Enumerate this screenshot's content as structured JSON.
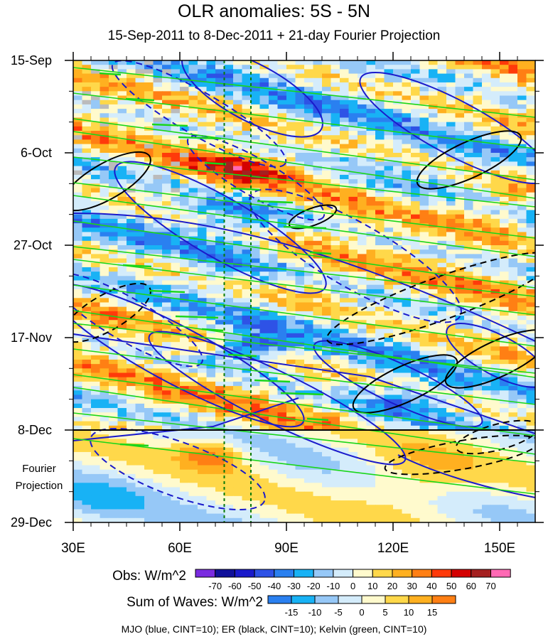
{
  "header": {
    "title": "OLR anomalies: 5S - 5N",
    "subtitle": "15-Sep-2011 to 8-Dec-2011 + 21-day Fourier Projection"
  },
  "chart_data": {
    "type": "heatmap",
    "title": "OLR anomalies: 5S - 5N",
    "subtitle": "15-Sep-2011 to 8-Dec-2011 + 21-day Fourier Projection",
    "xlabel": "",
    "ylabel": "",
    "x_ticks": [
      "30E",
      "60E",
      "90E",
      "120E",
      "150E"
    ],
    "x_tick_values": [
      30,
      60,
      90,
      120,
      150
    ],
    "xlim": [
      30,
      160
    ],
    "y_ticks": [
      "15-Sep",
      "6-Oct",
      "27-Oct",
      "17-Nov",
      "8-Dec",
      "29-Dec"
    ],
    "y_tick_values": [
      "2011-09-15",
      "2011-10-06",
      "2011-10-27",
      "2011-11-17",
      "2011-12-08",
      "2011-12-29"
    ],
    "ylim": [
      "2011-09-15",
      "2011-12-29"
    ],
    "projection_start": "2011-12-08",
    "projection_label": "Fourier Projection",
    "reference_lines_lon": [
      72.5,
      80
    ],
    "obs_colorbar": {
      "label": "Obs: W/m^2",
      "levels": [
        -70,
        -60,
        -50,
        -40,
        -30,
        -20,
        -10,
        0,
        10,
        20,
        30,
        40,
        50,
        60,
        70
      ],
      "colors": [
        "#7a2be0",
        "#10109a",
        "#1a1acb",
        "#2e52e6",
        "#2a80f0",
        "#18b2f5",
        "#96c8f7",
        "#d4ecfb",
        "#fffacd",
        "#ffd84a",
        "#ffb020",
        "#ff7f14",
        "#ff3a0a",
        "#d40000",
        "#a52020",
        "#ff69b4"
      ]
    },
    "waves_colorbar": {
      "label": "Sum of Waves: W/m^2",
      "levels": [
        -15,
        -10,
        -5,
        0,
        5,
        10,
        15
      ],
      "colors": [
        "#2a80f0",
        "#18b2f5",
        "#96c8f7",
        "#d4ecfb",
        "#fffacd",
        "#ffd84a",
        "#ffb020",
        "#ff7f14"
      ]
    },
    "contours": [
      {
        "name": "MJO",
        "color": "#1a1acb",
        "cint": 10
      },
      {
        "name": "ER",
        "color": "#000000",
        "cint": 10
      },
      {
        "name": "Kelvin",
        "color": "#19d619",
        "cint": 10
      }
    ],
    "footer": "MJO (blue, CINT=10); ER (black, CINT=10); Kelvin (green, CINT=10)"
  },
  "style": {
    "missing_color": "#bbbbbb",
    "ref_line_color": "#0a7a0a"
  }
}
